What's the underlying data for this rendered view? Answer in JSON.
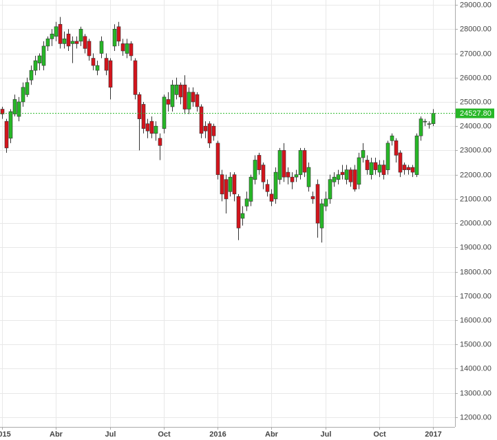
{
  "chart_data": {
    "type": "candlestick",
    "categories": [
      "2015",
      null,
      null,
      null,
      null,
      null,
      null,
      null,
      null,
      null,
      null,
      null,
      null,
      "Abr",
      null,
      null,
      null,
      null,
      null,
      null,
      null,
      null,
      null,
      null,
      null,
      null,
      "Jul",
      null,
      null,
      null,
      null,
      null,
      null,
      null,
      null,
      null,
      null,
      null,
      null,
      "Oct",
      null,
      null,
      null,
      null,
      null,
      null,
      null,
      null,
      null,
      null,
      null,
      null,
      "2016",
      null,
      null,
      null,
      null,
      null,
      null,
      null,
      null,
      null,
      null,
      null,
      null,
      "Abr",
      null,
      null,
      null,
      null,
      null,
      null,
      null,
      null,
      null,
      null,
      null,
      null,
      "Jul",
      null,
      null,
      null,
      null,
      null,
      null,
      null,
      null,
      null,
      null,
      null,
      null,
      "Oct",
      null,
      null,
      null,
      null,
      null,
      null,
      null,
      null,
      null,
      null,
      null,
      null,
      "2017"
    ],
    "open": [
      24700,
      24200,
      23500,
      24500,
      24400,
      25000,
      25300,
      25900,
      26300,
      26600,
      26500,
      27300,
      27600,
      27700,
      28200,
      27400,
      27800,
      27400,
      27500,
      27500,
      27700,
      27500,
      26800,
      26300,
      27000,
      26800,
      26700,
      27300,
      28100,
      27400,
      27000,
      27400,
      26700,
      25300,
      24900,
      24100,
      24200,
      23700,
      23500,
      23900,
      25100,
      24800,
      25300,
      25700,
      25700,
      24700,
      25400,
      25300,
      24800,
      24000,
      24100,
      24000,
      23300,
      22000,
      21800,
      21300,
      22000,
      21100,
      20200,
      20700,
      20900,
      21800,
      22800,
      22400,
      21600,
      21200,
      21000,
      21800,
      23000,
      22100,
      21900,
      21900,
      22000,
      23000,
      21500,
      21100,
      21600,
      19800,
      20700,
      21000,
      21700,
      21800,
      22100,
      21800,
      22200,
      22200,
      21600,
      22700,
      22600,
      22000,
      22500,
      22100,
      22400,
      22200,
      23400,
      23400,
      22900,
      22400,
      22300,
      22300,
      22000,
      23600,
      24200,
      24100,
      24100
    ],
    "high": [
      24800,
      24300,
      24700,
      25300,
      25200,
      25800,
      26000,
      26500,
      26900,
      27000,
      27500,
      27700,
      28000,
      28300,
      28500,
      27900,
      28000,
      27700,
      27700,
      28100,
      27800,
      27600,
      27000,
      26700,
      27700,
      27000,
      26800,
      28200,
      28300,
      27600,
      27600,
      27500,
      26800,
      25400,
      25000,
      24300,
      24400,
      24200,
      23700,
      25300,
      25400,
      25900,
      26000,
      25800,
      26100,
      25600,
      25600,
      25400,
      24900,
      24200,
      24200,
      24100,
      23400,
      22200,
      22000,
      22100,
      22100,
      21200,
      20700,
      21300,
      22000,
      22800,
      22900,
      22500,
      21800,
      21400,
      22300,
      23100,
      23300,
      22300,
      22100,
      22200,
      23100,
      23100,
      22500,
      21300,
      21800,
      21000,
      21300,
      22000,
      22100,
      22200,
      22400,
      22400,
      22300,
      22400,
      22900,
      23300,
      22800,
      22700,
      22700,
      22600,
      22600,
      23400,
      23700,
      23500,
      23000,
      22500,
      22400,
      22400,
      23700,
      24400,
      24300,
      24200,
      24700
    ],
    "low": [
      24300,
      22900,
      23300,
      24400,
      24200,
      24800,
      25200,
      25700,
      26100,
      26300,
      26300,
      27100,
      27300,
      27500,
      27200,
      27200,
      27100,
      26600,
      27200,
      27300,
      27000,
      26700,
      26300,
      26100,
      26800,
      26100,
      25100,
      27100,
      27300,
      26900,
      26800,
      26700,
      25100,
      23000,
      23700,
      23500,
      23500,
      23400,
      22600,
      23700,
      24600,
      24600,
      25100,
      24900,
      24500,
      24500,
      24800,
      24600,
      23500,
      23500,
      23100,
      23400,
      21800,
      20900,
      20400,
      21100,
      20900,
      19300,
      19900,
      20500,
      20700,
      21600,
      22000,
      21400,
      21100,
      20700,
      20800,
      21600,
      21700,
      21600,
      21400,
      21700,
      21800,
      21900,
      21300,
      20800,
      19400,
      19200,
      20500,
      20800,
      21500,
      21600,
      21800,
      21600,
      21500,
      21300,
      21400,
      22500,
      22000,
      21800,
      22000,
      21900,
      21800,
      22000,
      23200,
      22500,
      21900,
      22000,
      22000,
      21900,
      21900,
      23400,
      24000,
      23900,
      24000
    ],
    "close": [
      24500,
      23100,
      24600,
      25100,
      25000,
      25600,
      25800,
      26300,
      26700,
      26900,
      27300,
      27600,
      27800,
      28100,
      27400,
      27600,
      27300,
      27500,
      27400,
      28000,
      27200,
      26900,
      26500,
      26500,
      27500,
      26300,
      25600,
      28000,
      27500,
      27100,
      27400,
      26900,
      25300,
      24300,
      23900,
      23800,
      23700,
      24000,
      23200,
      25200,
      24900,
      25700,
      25700,
      25200,
      24700,
      25400,
      25000,
      24800,
      23700,
      23800,
      23300,
      23600,
      22000,
      21200,
      21000,
      21900,
      21200,
      19800,
      20400,
      21000,
      21900,
      22600,
      22200,
      21700,
      21300,
      20900,
      22100,
      23000,
      21900,
      21900,
      21700,
      22000,
      23000,
      22100,
      22300,
      21000,
      20000,
      20800,
      21000,
      21800,
      21900,
      22000,
      22000,
      22200,
      21700,
      21400,
      22700,
      23000,
      22200,
      22500,
      22200,
      22400,
      22000,
      23300,
      23600,
      22800,
      22100,
      22200,
      22200,
      22100,
      23600,
      24300,
      24200,
      24100,
      24527.8
    ],
    "up_color": "#27b727",
    "down_color": "#d4141c",
    "last_price": {
      "value": 24527.8,
      "label": "24527.80"
    },
    "ylim": [
      11600,
      29200
    ],
    "yticks": [
      {
        "value": 12000,
        "label": "12000.00"
      },
      {
        "value": 13000,
        "label": "13000.00"
      },
      {
        "value": 14000,
        "label": "14000.00"
      },
      {
        "value": 15000,
        "label": "15000.00"
      },
      {
        "value": 16000,
        "label": "16000.00"
      },
      {
        "value": 17000,
        "label": "17000.00"
      },
      {
        "value": 18000,
        "label": "18000.00"
      },
      {
        "value": 19000,
        "label": "19000.00"
      },
      {
        "value": 20000,
        "label": "20000.00"
      },
      {
        "value": 21000,
        "label": "21000.00"
      },
      {
        "value": 22000,
        "label": "22000.00"
      },
      {
        "value": 23000,
        "label": "23000.00"
      },
      {
        "value": 24000,
        "label": "24000.00"
      },
      {
        "value": 25000,
        "label": "25000.00"
      },
      {
        "value": 26000,
        "label": "26000.00"
      },
      {
        "value": 27000,
        "label": "27000.00"
      },
      {
        "value": 28000,
        "label": "28000.00"
      },
      {
        "value": 29000,
        "label": "29000.00"
      }
    ],
    "grid": true
  }
}
